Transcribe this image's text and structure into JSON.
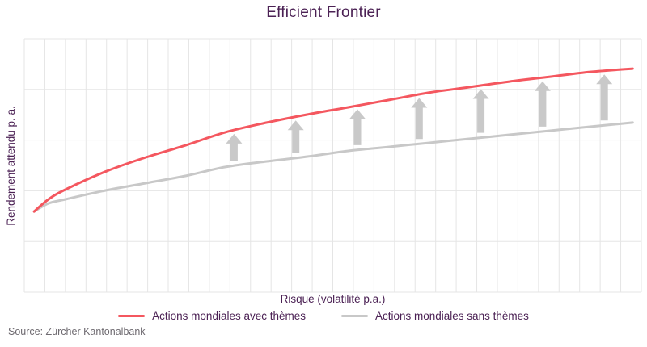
{
  "title": "Efficient Frontier",
  "axes": {
    "x_label": "Risque (volatilité p.a.)",
    "y_label": "Rendement attendu p. a."
  },
  "legend": {
    "items": [
      {
        "label": "Actions mondiales avec thèmes",
        "color": "#f4575f"
      },
      {
        "label": "Actions mondiales sans thèmes",
        "color": "#c8c8c8"
      }
    ]
  },
  "source": "Source: Zürcher Kantonalbank",
  "colors": {
    "text": "#4b2154",
    "source_text": "#6e6a70",
    "grid": "#e5e5e5",
    "arrow": "#c9c9c9",
    "background": "#ffffff",
    "series_red": "#f4575f",
    "series_gray": "#c8c8c8"
  },
  "chart_data": {
    "type": "line",
    "title": "Efficient Frontier",
    "xlabel": "Risque (volatilité p.a.)",
    "ylabel": "Rendement attendu p. a.",
    "xlim": [
      0,
      100
    ],
    "ylim": [
      0,
      100
    ],
    "tick_labels": "none (qualitative axes, no numeric ticks shown)",
    "grid": true,
    "grid_columns": 30,
    "grid_rows": 5,
    "legend_position": "bottom",
    "x": [
      1.6,
      3.9,
      6.6,
      13.1,
      19.7,
      26.2,
      32.6,
      39.3,
      45.9,
      52.4,
      59.0,
      65.5,
      72.1,
      78.6,
      85.2,
      91.7,
      98.6
    ],
    "series": [
      {
        "name": "Actions mondiales avec thèmes",
        "color": "#f4575f",
        "values": [
          31.8,
          36.6,
          40.4,
          47.5,
          53.2,
          58.0,
          63.1,
          66.9,
          70.1,
          72.9,
          75.8,
          78.7,
          80.9,
          83.1,
          85.0,
          86.9,
          88.2
        ]
      },
      {
        "name": "Actions mondiales sans thèmes",
        "color": "#c8c8c8",
        "values": [
          31.8,
          35.0,
          36.6,
          40.1,
          43.0,
          45.9,
          49.4,
          51.6,
          53.5,
          55.7,
          57.3,
          58.9,
          60.5,
          62.1,
          63.7,
          65.3,
          66.9
        ]
      }
    ],
    "annotations": {
      "description": "vertical up-arrows from lower curve to upper curve showing theme premium",
      "arrows_x": [
        34,
        44,
        54,
        64,
        74,
        84,
        94
      ]
    }
  }
}
